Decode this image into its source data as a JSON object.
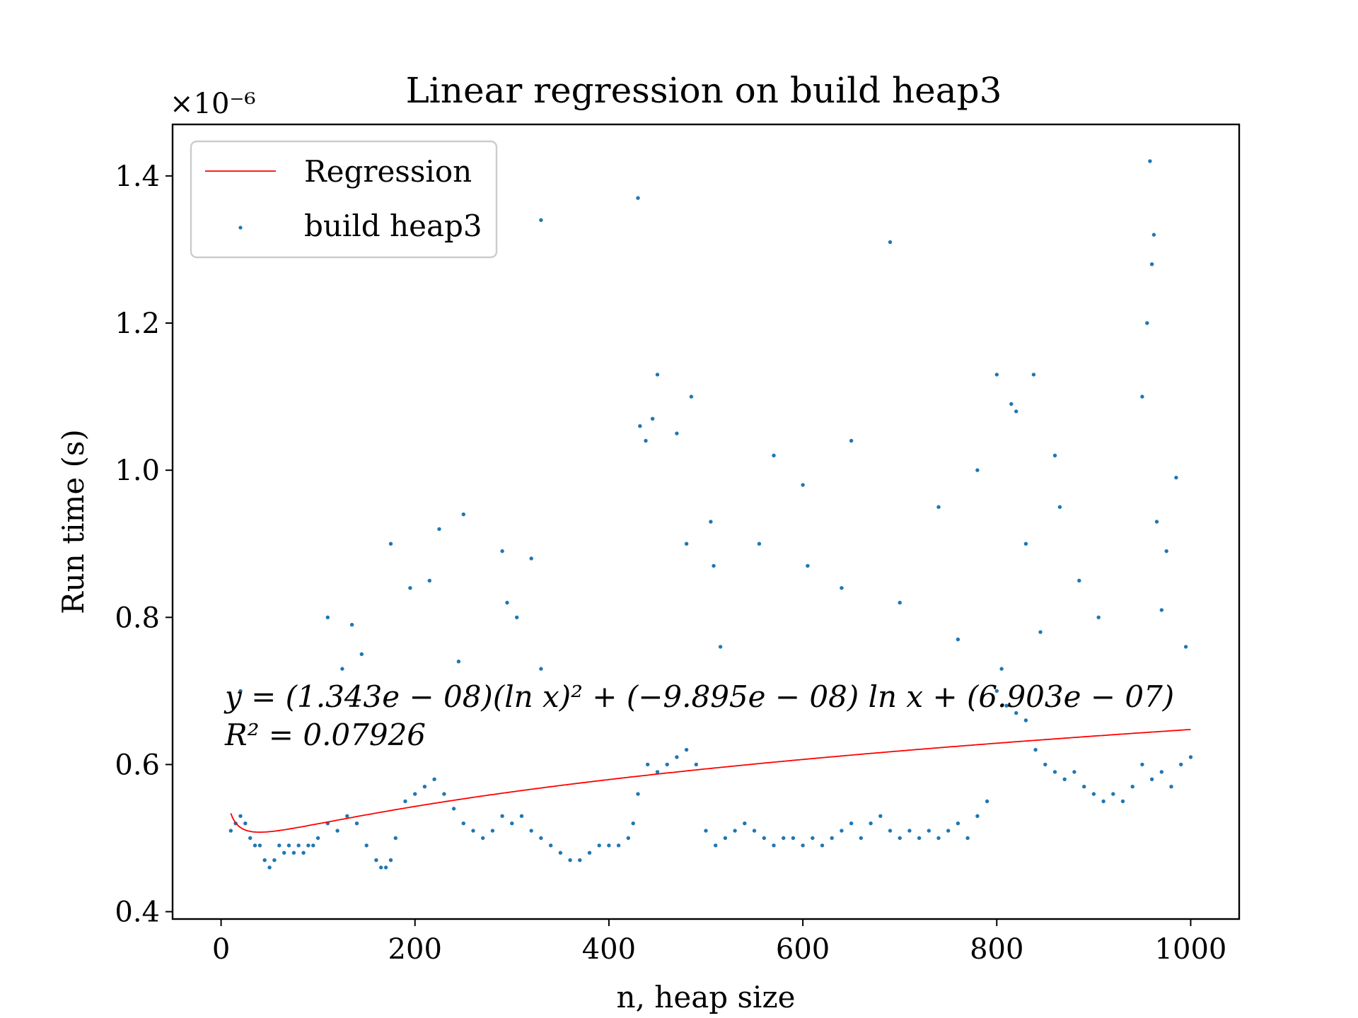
{
  "chart_data": {
    "type": "scatter",
    "title": "Linear regression on build heap3",
    "xlabel": "n, heap size",
    "ylabel": "Run time (s)",
    "y_offset_label": "×10⁻⁶",
    "y_scale_factor": 1e-06,
    "xlim": [
      -50,
      1050
    ],
    "ylim": [
      0.39,
      1.47
    ],
    "x_ticks": [
      0,
      200,
      400,
      600,
      800,
      1000
    ],
    "y_ticks": [
      0.4,
      0.6,
      0.8,
      1.0,
      1.2,
      1.4
    ],
    "x_tick_labels": [
      "0",
      "200",
      "400",
      "600",
      "800",
      "1000"
    ],
    "y_tick_labels": [
      "0.4",
      "0.6",
      "0.8",
      "1.0",
      "1.2",
      "1.4"
    ],
    "legend": {
      "position": "top-left",
      "entries": [
        {
          "label": "Regression",
          "kind": "line",
          "color": "#ff0000"
        },
        {
          "label": "build heap3",
          "kind": "marker",
          "color": "#1f77b4"
        }
      ]
    },
    "annotations": [
      "y = (1.343e − 08)(ln x)² + (−9.895e − 08) ln x + (6.903e − 07)",
      "R² = 0.07926"
    ],
    "regression": {
      "name": "Regression",
      "color": "#ff0000",
      "formula": "a*(ln x)^2 + b*ln x + c",
      "coefficients": {
        "a": 1.343e-08,
        "b": -9.895e-08,
        "c": 6.903e-07
      },
      "x_range": [
        10,
        1000
      ]
    },
    "series": [
      {
        "name": "build heap3",
        "color": "#1f77b4",
        "x": [
          10,
          15,
          20,
          25,
          30,
          35,
          40,
          45,
          50,
          55,
          60,
          65,
          70,
          75,
          80,
          85,
          90,
          95,
          100,
          110,
          120,
          130,
          140,
          150,
          160,
          165,
          170,
          175,
          180,
          190,
          200,
          210,
          220,
          230,
          240,
          250,
          260,
          270,
          280,
          290,
          300,
          310,
          320,
          330,
          340,
          350,
          360,
          370,
          380,
          390,
          400,
          410,
          420,
          425,
          430,
          440,
          450,
          460,
          470,
          480,
          490,
          500,
          510,
          520,
          530,
          540,
          550,
          560,
          570,
          580,
          590,
          600,
          610,
          620,
          630,
          640,
          650,
          660,
          670,
          680,
          690,
          700,
          710,
          720,
          730,
          740,
          750,
          760,
          770,
          780,
          790,
          800,
          810,
          820,
          830,
          840,
          850,
          860,
          870,
          880,
          890,
          900,
          910,
          920,
          930,
          940,
          950,
          960,
          970,
          980,
          990,
          1000,
          20,
          110,
          125,
          135,
          145,
          175,
          195,
          215,
          225,
          245,
          250,
          290,
          295,
          305,
          320,
          330,
          330,
          430,
          432,
          438,
          445,
          450,
          470,
          480,
          485,
          505,
          508,
          515,
          555,
          570,
          600,
          605,
          640,
          650,
          690,
          700,
          740,
          760,
          780,
          800,
          805,
          815,
          820,
          830,
          838,
          845,
          860,
          865,
          885,
          905,
          950,
          955,
          958,
          960,
          962,
          965,
          970,
          975,
          985,
          995
        ],
        "y": [
          0.51,
          0.52,
          0.53,
          0.52,
          0.5,
          0.49,
          0.49,
          0.47,
          0.46,
          0.47,
          0.49,
          0.48,
          0.49,
          0.48,
          0.49,
          0.48,
          0.49,
          0.49,
          0.5,
          0.52,
          0.51,
          0.53,
          0.52,
          0.49,
          0.47,
          0.46,
          0.46,
          0.47,
          0.5,
          0.55,
          0.56,
          0.57,
          0.58,
          0.56,
          0.54,
          0.52,
          0.51,
          0.5,
          0.51,
          0.53,
          0.52,
          0.53,
          0.51,
          0.5,
          0.49,
          0.48,
          0.47,
          0.47,
          0.48,
          0.49,
          0.49,
          0.49,
          0.5,
          0.52,
          0.56,
          0.6,
          0.59,
          0.6,
          0.61,
          0.62,
          0.6,
          0.51,
          0.49,
          0.5,
          0.51,
          0.52,
          0.51,
          0.5,
          0.49,
          0.5,
          0.5,
          0.49,
          0.5,
          0.49,
          0.5,
          0.51,
          0.52,
          0.5,
          0.52,
          0.53,
          0.51,
          0.5,
          0.51,
          0.5,
          0.51,
          0.5,
          0.51,
          0.52,
          0.5,
          0.53,
          0.55,
          0.7,
          0.68,
          0.67,
          0.66,
          0.62,
          0.6,
          0.59,
          0.58,
          0.59,
          0.57,
          0.56,
          0.55,
          0.56,
          0.55,
          0.57,
          0.6,
          0.58,
          0.59,
          0.57,
          0.6,
          0.61,
          0.7,
          0.8,
          0.73,
          0.79,
          0.75,
          0.9,
          0.84,
          0.85,
          0.92,
          0.74,
          0.94,
          0.89,
          0.82,
          0.8,
          0.88,
          1.34,
          0.73,
          1.37,
          1.06,
          1.04,
          1.07,
          1.13,
          1.05,
          0.9,
          1.1,
          0.93,
          0.87,
          0.76,
          0.9,
          1.02,
          0.98,
          0.87,
          0.84,
          1.04,
          1.31,
          0.82,
          0.95,
          0.77,
          1.0,
          1.13,
          0.73,
          1.09,
          1.08,
          0.9,
          1.13,
          0.78,
          1.02,
          0.95,
          0.85,
          0.8,
          1.1,
          1.2,
          1.42,
          1.28,
          1.32,
          0.93,
          0.81,
          0.89,
          0.99,
          0.76
        ]
      }
    ]
  }
}
